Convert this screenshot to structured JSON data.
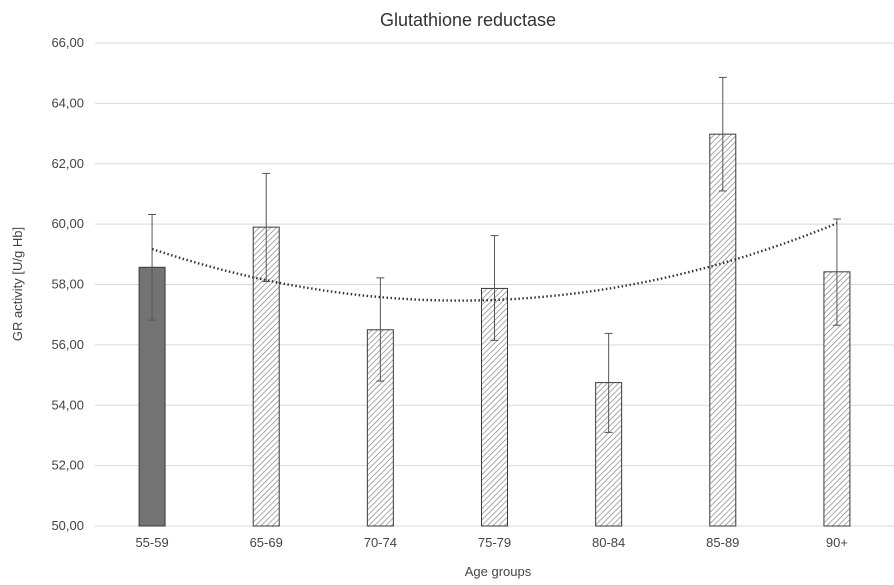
{
  "chart_data": {
    "type": "bar",
    "title": "Glutathione reductase",
    "xlabel": "Age groups",
    "ylabel": "GR activity [U/g Hb]",
    "ylim": [
      50,
      66
    ],
    "y_ticks": [
      "50,00",
      "52,00",
      "54,00",
      "56,00",
      "58,00",
      "60,00",
      "62,00",
      "64,00",
      "66,00"
    ],
    "grid": true,
    "categories": [
      "55-59",
      "65-69",
      "70-74",
      "75-79",
      "80-84",
      "85-89",
      "90+"
    ],
    "values": [
      58.57,
      59.9,
      56.5,
      57.87,
      54.75,
      62.98,
      58.42
    ],
    "error_low": [
      56.82,
      58.1,
      54.8,
      56.15,
      53.1,
      61.1,
      56.65
    ],
    "error_high": [
      60.32,
      61.68,
      58.22,
      59.62,
      56.38,
      64.86,
      60.17
    ],
    "trendline": {
      "type": "polynomial",
      "style": "dotted",
      "color": "#333333"
    },
    "colors": {
      "first_bar": "#737373",
      "hatch": "#7a7a7a",
      "bar_edge": "#3a3a3a",
      "grid": "#d9d9d9",
      "error_bar": "#555555"
    }
  }
}
